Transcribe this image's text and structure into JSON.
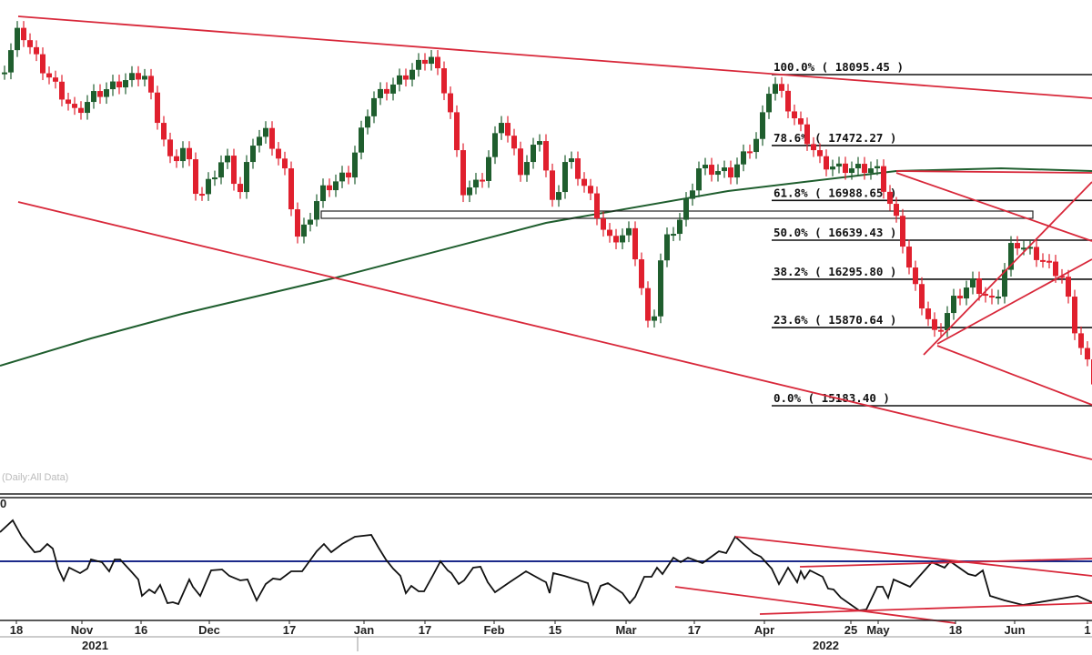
{
  "chart_data": [
    {
      "type": "candlestick",
      "note_label": "(Daily:All Data)",
      "colors": {
        "up": "#1f5e2e",
        "down": "#e0202e",
        "moving_average": "#1f5e2e",
        "trendline": "#d8283a",
        "fib_line": "#111111"
      },
      "price_path": [
        [
          0,
          18110
        ],
        [
          4.5,
          18511
        ],
        [
          10,
          18191
        ],
        [
          20,
          17751
        ],
        [
          25,
          17911
        ],
        [
          32.5,
          18031
        ],
        [
          38.75,
          18111
        ],
        [
          46.25,
          17311
        ],
        [
          50,
          17471
        ],
        [
          53.75,
          16991
        ],
        [
          61.25,
          17391
        ],
        [
          65,
          17031
        ],
        [
          68.75,
          17511
        ],
        [
          72.5,
          17591
        ],
        [
          77.5,
          17231
        ],
        [
          81.25,
          16631
        ],
        [
          87.5,
          17071
        ],
        [
          95,
          17231
        ],
        [
          101.25,
          17871
        ],
        [
          110,
          18071
        ],
        [
          117.5,
          18271
        ],
        [
          122.5,
          17871
        ],
        [
          126.25,
          17071
        ],
        [
          131.25,
          17151
        ],
        [
          137,
          17711
        ],
        [
          142.5,
          17231
        ],
        [
          147.5,
          17551
        ],
        [
          151.25,
          16911
        ],
        [
          155,
          17391
        ],
        [
          161.25,
          17031
        ],
        [
          166.25,
          16631
        ],
        [
          172.5,
          16711
        ],
        [
          175,
          16311
        ],
        [
          178,
          15751
        ],
        [
          181.25,
          16591
        ],
        [
          186.25,
          16831
        ],
        [
          191.25,
          17271
        ],
        [
          200,
          17231
        ],
        [
          207.5,
          17551
        ],
        [
          211.25,
          18071
        ],
        [
          217.5,
          17711
        ],
        [
          225,
          17311
        ],
        [
          230,
          17271
        ],
        [
          240,
          17271
        ],
        [
          246.25,
          16751
        ],
        [
          250,
          16271
        ],
        [
          256.25,
          15791
        ],
        [
          261.25,
          16111
        ],
        [
          266.25,
          16271
        ],
        [
          272.5,
          16071
        ],
        [
          277.5,
          16631
        ],
        [
          283.75,
          16511
        ],
        [
          291.25,
          16311
        ],
        [
          295,
          15791
        ],
        [
          300,
          15391
        ]
      ],
      "fibonacci": [
        {
          "label": "100.0% ( 18095.45 )",
          "level": 18095.45
        },
        {
          "label": "78.6% ( 17472.27 )",
          "level": 17472.27
        },
        {
          "label": "61.8% ( 16988.65 )",
          "level": 16988.65
        },
        {
          "label": "50.0% ( 16639.43 )",
          "level": 16639.43
        },
        {
          "label": "38.2% ( 16295.80 )",
          "level": 16295.8
        },
        {
          "label": "23.6% ( 15870.64 )",
          "level": 15870.64
        },
        {
          "label": "0.0% ( 15183.40 )",
          "level": 15183.4
        }
      ],
      "x_ticks": [
        "18",
        "Nov",
        "16",
        "Dec",
        "17",
        "Jan",
        "17",
        "Feb",
        "15",
        "Mar",
        "17",
        "Apr",
        "25",
        "May",
        "18",
        "Jun",
        "1"
      ],
      "years": [
        "2021",
        "2022"
      ]
    },
    {
      "type": "line",
      "top_label": "0",
      "reference_level": 50,
      "colors": {
        "line": "#111111",
        "reference": "#1c2a8a",
        "trendline": "#d8283a"
      },
      "values": [
        [
          0,
          66
        ],
        [
          3.5,
          72.5
        ],
        [
          6,
          63.5
        ],
        [
          9.5,
          55
        ],
        [
          11,
          55.5
        ],
        [
          13,
          59.5
        ],
        [
          14.5,
          57
        ],
        [
          16,
          46
        ],
        [
          17.5,
          39.5
        ],
        [
          19,
          46.5
        ],
        [
          22,
          43.5
        ],
        [
          24,
          46
        ],
        [
          25,
          51
        ],
        [
          28,
          49.5
        ],
        [
          30,
          44.5
        ],
        [
          31.5,
          51
        ],
        [
          33,
          51
        ],
        [
          36,
          44.5
        ],
        [
          38,
          40
        ],
        [
          39,
          31
        ],
        [
          41,
          34.5
        ],
        [
          42.5,
          32.5
        ],
        [
          44,
          37
        ],
        [
          46,
          27
        ],
        [
          47.5,
          27.5
        ],
        [
          49,
          26.5
        ],
        [
          52,
          40
        ],
        [
          53,
          36
        ],
        [
          55,
          31
        ],
        [
          58,
          45
        ],
        [
          61,
          45.5
        ],
        [
          63,
          42
        ],
        [
          66,
          39.5
        ],
        [
          68,
          40
        ],
        [
          70.5,
          28.5
        ],
        [
          73,
          37.5
        ],
        [
          75,
          40.5
        ],
        [
          77,
          40
        ],
        [
          80,
          44.5
        ],
        [
          83,
          44.5
        ],
        [
          85,
          50
        ],
        [
          87,
          55.5
        ],
        [
          89,
          59.5
        ],
        [
          91,
          55
        ],
        [
          94,
          59.5
        ],
        [
          97.5,
          63.5
        ],
        [
          102,
          64.5
        ],
        [
          104,
          57.5
        ],
        [
          106,
          51
        ],
        [
          108,
          46
        ],
        [
          110,
          42
        ],
        [
          111.5,
          32.5
        ],
        [
          113,
          36.5
        ],
        [
          115,
          33.5
        ],
        [
          116.5,
          33.5
        ],
        [
          119,
          42.5
        ],
        [
          121,
          50
        ],
        [
          123,
          45
        ],
        [
          124,
          43.5
        ],
        [
          126,
          37.5
        ],
        [
          127.5,
          39.5
        ],
        [
          130,
          46.5
        ],
        [
          132,
          47
        ],
        [
          134,
          38.5
        ],
        [
          136,
          33
        ],
        [
          140,
          38.5
        ],
        [
          144.5,
          44.5
        ],
        [
          149,
          39.5
        ],
        [
          150,
          38.5
        ],
        [
          151,
          32.5
        ],
        [
          152,
          43.5
        ],
        [
          155,
          42
        ],
        [
          161.5,
          38
        ],
        [
          163,
          26.5
        ],
        [
          165,
          36.5
        ],
        [
          167,
          38
        ],
        [
          171,
          32.5
        ],
        [
          173,
          27
        ],
        [
          174.5,
          30.5
        ],
        [
          177,
          41.5
        ],
        [
          179,
          41.5
        ],
        [
          180.5,
          46.5
        ],
        [
          182,
          43
        ],
        [
          185,
          52
        ],
        [
          187,
          49.5
        ],
        [
          189,
          52
        ],
        [
          193,
          49
        ],
        [
          197.5,
          55.5
        ],
        [
          199.5,
          54.5
        ],
        [
          202,
          63.5
        ],
        [
          207,
          54.5
        ],
        [
          209,
          52.5
        ],
        [
          212,
          46
        ],
        [
          214,
          37.5
        ],
        [
          216.5,
          46.5
        ],
        [
          219,
          38.5
        ],
        [
          220,
          44.5
        ],
        [
          221,
          40.5
        ],
        [
          222.5,
          45
        ],
        [
          226,
          41.5
        ],
        [
          227.5,
          35
        ],
        [
          229,
          34.5
        ],
        [
          231,
          30
        ],
        [
          236,
          23
        ],
        [
          238,
          23.5
        ],
        [
          241,
          36
        ],
        [
          242.5,
          36
        ],
        [
          244,
          30
        ],
        [
          245.5,
          40
        ],
        [
          250,
          36
        ],
        [
          256,
          49.5
        ],
        [
          259.5,
          46.5
        ],
        [
          261,
          50
        ],
        [
          266,
          43
        ],
        [
          268,
          42
        ],
        [
          270,
          45
        ],
        [
          272,
          31
        ],
        [
          276,
          28.5
        ],
        [
          281,
          26
        ],
        [
          296,
          31
        ],
        [
          300,
          27.5
        ]
      ]
    }
  ]
}
